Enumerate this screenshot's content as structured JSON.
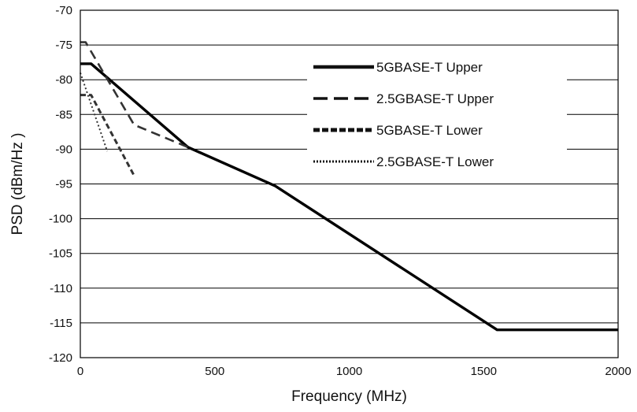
{
  "chart_data": {
    "type": "line",
    "title": "",
    "xlabel": "Frequency (MHz)",
    "ylabel": "PSD (dBm/Hz )",
    "xlim": [
      0,
      2000
    ],
    "ylim": [
      -120,
      -70
    ],
    "xticks": [
      0,
      500,
      1000,
      1500,
      2000
    ],
    "yticks": [
      -70,
      -75,
      -80,
      -85,
      -90,
      -95,
      -100,
      -105,
      -110,
      -115,
      -120
    ],
    "grid": "horizontal",
    "legend_position": "upper-right",
    "series": [
      {
        "name": "5GBASE-T Upper",
        "style": "solid",
        "color": "#000000",
        "points": [
          [
            0,
            -77.7
          ],
          [
            40,
            -77.7
          ],
          [
            400,
            -89.7
          ],
          [
            725,
            -95.3
          ],
          [
            1550,
            -116.0
          ],
          [
            2000,
            -116.0
          ]
        ]
      },
      {
        "name": "2.5GBASE-T Upper",
        "style": "dashed",
        "color": "#333333",
        "points": [
          [
            0,
            -74.6
          ],
          [
            20,
            -74.6
          ],
          [
            200,
            -86.5
          ],
          [
            400,
            -89.7
          ]
        ]
      },
      {
        "name": "5GBASE-T Lower",
        "style": "dashed-heavy",
        "color": "#333333",
        "points": [
          [
            0,
            -82.2
          ],
          [
            40,
            -82.2
          ],
          [
            200,
            -93.8
          ]
        ]
      },
      {
        "name": "2.5GBASE-T Lower",
        "style": "dotted",
        "color": "#333333",
        "points": [
          [
            0,
            -79.0
          ],
          [
            100,
            -90.3
          ]
        ]
      }
    ]
  }
}
